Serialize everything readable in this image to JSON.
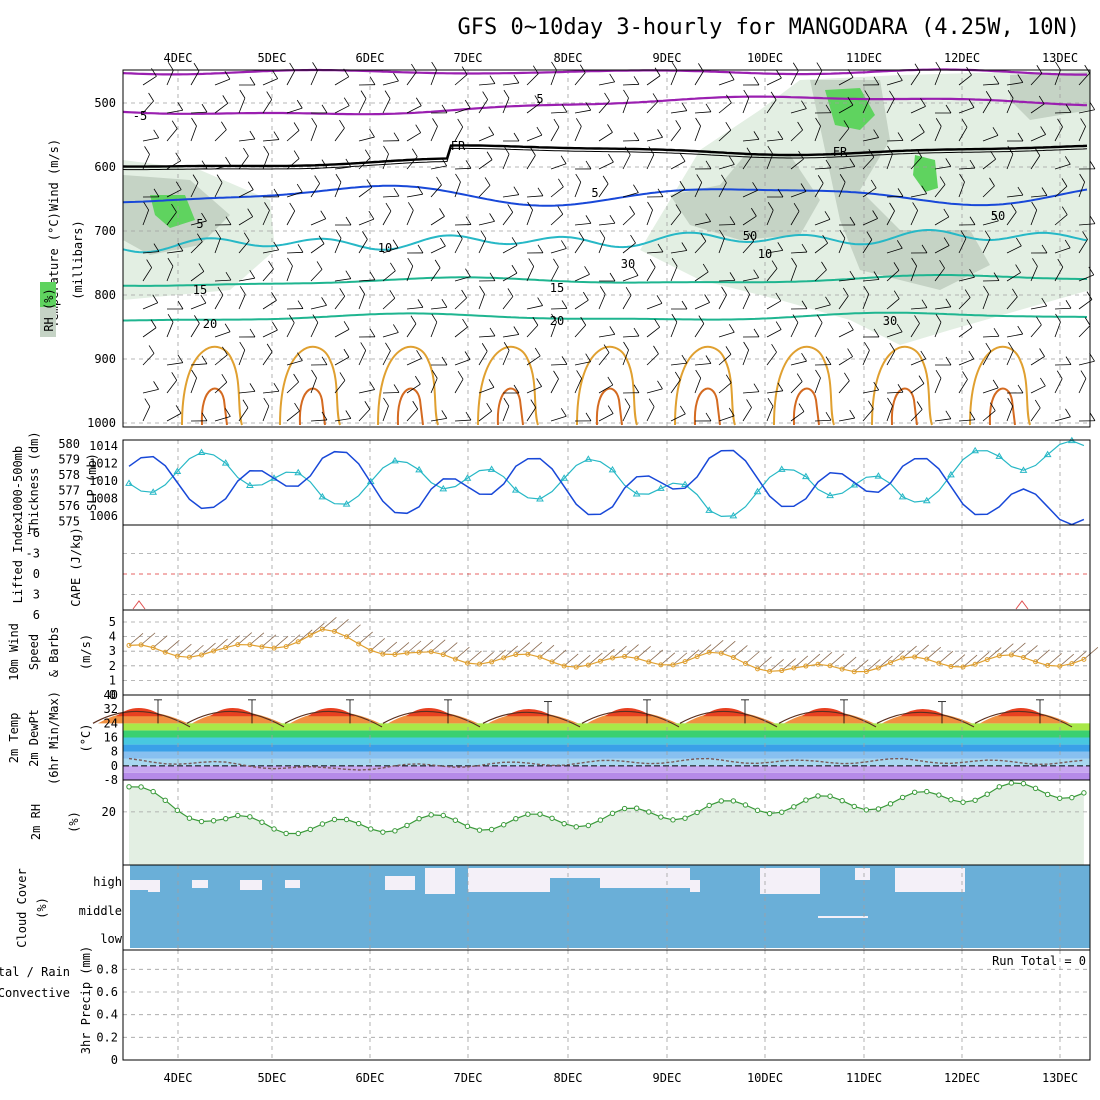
{
  "title": "GFS 0~10day 3-hourly for MANGODARA (4.25W, 10N)",
  "x_axis": {
    "date_labels": [
      "4DEC",
      "5DEC",
      "6DEC",
      "7DEC",
      "8DEC",
      "9DEC",
      "10DEC",
      "11DEC",
      "12DEC",
      "13DEC"
    ]
  },
  "colors": {
    "grid": "#a0a0a0",
    "rh_fill": "#e3efe3",
    "rh_fill_dark": "#c5d3c5",
    "rh_green": "#5fd35f",
    "violet": "#9a1fb0",
    "cyan": "#27b8c6",
    "blue": "#1848d8",
    "teal": "#1fb590",
    "orange": "#e0a030",
    "cloud": "#6aafd8",
    "precip_bg": "#ffffff"
  },
  "panels": {
    "upper_air": {
      "ylabels": [
        "Wind (m/s)",
        "Temperature (°C)",
        "RH (%)",
        "(millibars)"
      ],
      "yticks": [
        "500",
        "600",
        "700",
        "800",
        "900",
        "1000"
      ],
      "contour_labels": [
        "-5",
        "5",
        "FR",
        "FR",
        "5",
        "5",
        "10",
        "10",
        "15",
        "15",
        "20",
        "20",
        "50",
        "30",
        "30",
        "50"
      ]
    },
    "slp": {
      "ylabels": [
        "1000-500mb",
        "Thickness (dm)",
        "SLP (mb)"
      ],
      "left_ticks": [
        "580",
        "579",
        "578",
        "577",
        "576",
        "575"
      ],
      "right_ticks": [
        "1014",
        "1012",
        "1010",
        "1008",
        "1006"
      ]
    },
    "cape": {
      "ylabels": [
        "Lifted Index",
        "CAPE (J/kg)"
      ],
      "yticks": [
        "-6",
        "-3",
        "0",
        "3",
        "6"
      ]
    },
    "wind10m": {
      "ylabels": [
        "10m Wind",
        "Speed",
        "& Barbs",
        "(m/s)"
      ],
      "yticks": [
        "5",
        "4",
        "3",
        "2",
        "1",
        "0"
      ]
    },
    "temp2m": {
      "ylabels": [
        "2m Temp",
        "2m DewPt",
        "(6hr Min/Max)",
        "(°C)"
      ],
      "yticks": [
        "40",
        "32",
        "24",
        "16",
        "8",
        "0",
        "-8"
      ]
    },
    "rh2m": {
      "ylabels": [
        "2m RH",
        "(%)"
      ],
      "yticks": [
        "20"
      ]
    },
    "cloud": {
      "ylabels": [
        "Cloud Cover",
        "(%)"
      ],
      "yticks": [
        "high",
        "middle",
        "low"
      ]
    },
    "precip": {
      "ylabels": [
        "Total / Rain",
        "Convective",
        "3hr Precip (mm)"
      ],
      "yticks": [
        "0.8",
        "0.6",
        "0.4",
        "0.2",
        "0"
      ],
      "run_total": "Run Total = 0"
    }
  },
  "chart_data": [
    {
      "type": "line",
      "title": "1000-500mb Thickness (dm) / SLP (mb)",
      "x": [
        "4DEC",
        "5DEC",
        "6DEC",
        "7DEC",
        "8DEC",
        "9DEC",
        "10DEC",
        "11DEC",
        "12DEC",
        "13DEC"
      ],
      "series": [
        {
          "name": "SLP (mb)",
          "values": [
            1012,
            1008,
            1013,
            1007,
            1012,
            1007,
            1013,
            1008,
            1012,
            1007
          ]
        },
        {
          "name": "1000-500mb Thickness (dm)",
          "values": [
            577.5,
            579,
            576.5,
            578.5,
            577,
            578.5,
            575.5,
            578,
            576.5,
            579.5
          ]
        }
      ]
    },
    {
      "type": "line",
      "title": "10m Wind Speed (m/s)",
      "x": [
        "4DEC",
        "5DEC",
        "6DEC",
        "7DEC",
        "8DEC",
        "9DEC",
        "10DEC",
        "11DEC",
        "12DEC",
        "13DEC"
      ],
      "series": [
        {
          "name": "10m Wind Speed",
          "values": [
            3.2,
            3.0,
            4.6,
            2.6,
            2.4,
            2.1,
            2.6,
            1.4,
            2.1,
            2.3
          ]
        }
      ],
      "ylim": [
        0,
        6
      ]
    },
    {
      "type": "line",
      "title": "2m Temp (°C)",
      "x": [
        "4DEC",
        "5DEC",
        "6DEC",
        "7DEC",
        "8DEC",
        "9DEC",
        "10DEC",
        "11DEC",
        "12DEC",
        "13DEC"
      ],
      "series": [
        {
          "name": "2m Temp max",
          "values": [
            35,
            35,
            35,
            35,
            34,
            35,
            35,
            35,
            34,
            35
          ]
        },
        {
          "name": "2m Temp min",
          "values": [
            22,
            22,
            22,
            22,
            22,
            22,
            22,
            22,
            22,
            22
          ]
        },
        {
          "name": "2m DewPt",
          "values": [
            3,
            1,
            -2,
            0,
            1,
            2,
            3,
            2,
            3,
            2
          ]
        }
      ],
      "ylim": [
        -8,
        40
      ]
    },
    {
      "type": "area",
      "title": "2m RH (%)",
      "x": [
        "4DEC",
        "5DEC",
        "6DEC",
        "7DEC",
        "8DEC",
        "9DEC",
        "10DEC",
        "11DEC",
        "12DEC",
        "13DEC"
      ],
      "series": [
        {
          "name": "2m RH",
          "values": [
            28,
            16,
            14,
            16,
            16,
            18,
            21,
            23,
            24,
            28
          ]
        }
      ]
    },
    {
      "type": "line",
      "title": "3hr Precip (mm)",
      "x": [
        "4DEC",
        "5DEC",
        "6DEC",
        "7DEC",
        "8DEC",
        "9DEC",
        "10DEC",
        "11DEC",
        "12DEC",
        "13DEC"
      ],
      "series": [
        {
          "name": "Total",
          "values": [
            0,
            0,
            0,
            0,
            0,
            0,
            0,
            0,
            0,
            0
          ]
        }
      ],
      "ylim": [
        0,
        1
      ]
    }
  ]
}
